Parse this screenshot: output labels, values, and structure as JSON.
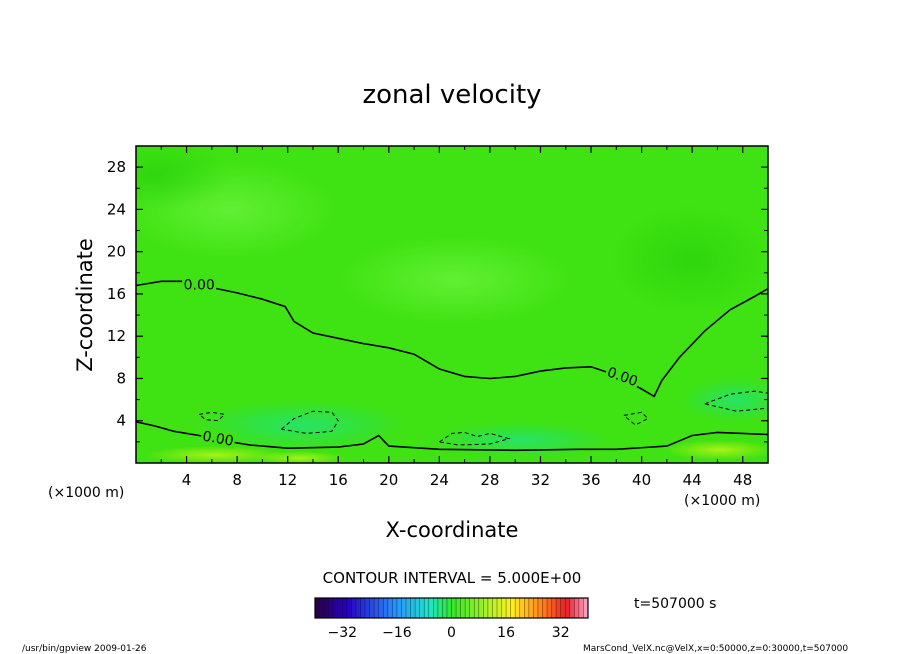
{
  "chart_data": {
    "type": "heatmap",
    "title": "zonal velocity",
    "xlabel": "X-coordinate",
    "ylabel": "Z-coordinate",
    "x_unit_left": "(×1000 m)",
    "x_unit_right": "(×1000 m)",
    "xlim": [
      0,
      50
    ],
    "ylim": [
      0,
      30
    ],
    "x_ticks": [
      4,
      8,
      12,
      16,
      20,
      24,
      28,
      32,
      36,
      40,
      44,
      48
    ],
    "y_ticks": [
      4,
      8,
      12,
      16,
      20,
      24,
      28
    ],
    "x_tick_labels": [
      "4",
      "8",
      "12",
      "16",
      "20",
      "24",
      "28",
      "32",
      "36",
      "40",
      "44",
      "48"
    ],
    "y_tick_labels": [
      "4",
      "8",
      "12",
      "16",
      "20",
      "24",
      "28"
    ],
    "contour_interval_text": "CONTOUR INTERVAL = 5.000E+00",
    "time_text": "t=507000 s",
    "contour_labels": [
      "0.00",
      "0.00",
      "0.00"
    ],
    "zero_contour_upper": [
      [
        0,
        16.8
      ],
      [
        2,
        17.2
      ],
      [
        4,
        17.2
      ],
      [
        6,
        16.6
      ],
      [
        8,
        16.1
      ],
      [
        10,
        15.5
      ],
      [
        11.8,
        14.8
      ],
      [
        12.5,
        13.4
      ],
      [
        14,
        12.3
      ],
      [
        16,
        11.8
      ],
      [
        18,
        11.3
      ],
      [
        20,
        10.9
      ],
      [
        22,
        10.3
      ],
      [
        24,
        8.9
      ],
      [
        26,
        8.2
      ],
      [
        28,
        8.0
      ],
      [
        30,
        8.2
      ],
      [
        32,
        8.7
      ],
      [
        34,
        9.0
      ],
      [
        36,
        9.1
      ],
      [
        38,
        8.3
      ],
      [
        40,
        7.0
      ],
      [
        41,
        6.3
      ],
      [
        41.6,
        7.8
      ],
      [
        43,
        10.0
      ],
      [
        45,
        12.5
      ],
      [
        47,
        14.5
      ],
      [
        49,
        15.8
      ],
      [
        50,
        16.5
      ]
    ],
    "zero_contour_lower": [
      [
        0,
        3.9
      ],
      [
        1.5,
        3.5
      ],
      [
        3,
        3.0
      ],
      [
        5,
        2.6
      ],
      [
        7,
        2.1
      ],
      [
        9,
        1.7
      ],
      [
        12,
        1.4
      ],
      [
        16,
        1.5
      ],
      [
        18,
        1.8
      ],
      [
        19.2,
        2.6
      ],
      [
        20,
        1.6
      ],
      [
        24,
        1.3
      ],
      [
        30,
        1.2
      ],
      [
        35,
        1.3
      ],
      [
        38,
        1.3
      ],
      [
        42,
        1.6
      ],
      [
        44,
        2.6
      ],
      [
        46,
        2.9
      ],
      [
        48,
        2.8
      ],
      [
        50,
        2.7
      ]
    ],
    "dashed_contours": [
      [
        [
          5,
          4.6
        ],
        [
          6,
          4.8
        ],
        [
          7,
          4.6
        ],
        [
          6.5,
          4.0
        ],
        [
          5.5,
          4.1
        ],
        [
          5,
          4.6
        ]
      ],
      [
        [
          11.5,
          3.2
        ],
        [
          12.5,
          4.2
        ],
        [
          14,
          4.9
        ],
        [
          15.5,
          4.8
        ],
        [
          16,
          4.0
        ],
        [
          15.5,
          3.0
        ],
        [
          13.5,
          2.8
        ],
        [
          11.5,
          3.2
        ]
      ],
      [
        [
          24,
          2.0
        ],
        [
          25,
          2.8
        ],
        [
          26,
          2.9
        ],
        [
          27,
          2.5
        ],
        [
          28,
          2.8
        ],
        [
          29.5,
          2.3
        ],
        [
          28,
          1.8
        ],
        [
          25.5,
          1.7
        ],
        [
          24,
          2.0
        ]
      ],
      [
        [
          38.6,
          4.5
        ],
        [
          40,
          4.8
        ],
        [
          40.5,
          4.2
        ],
        [
          39.5,
          3.6
        ],
        [
          38.6,
          4.5
        ]
      ],
      [
        [
          45,
          5.6
        ],
        [
          47,
          6.5
        ],
        [
          49,
          6.8
        ],
        [
          50,
          6.6
        ],
        [
          50,
          5.2
        ],
        [
          47.5,
          4.9
        ],
        [
          45,
          5.6
        ]
      ]
    ],
    "colorbar_ticks": [
      -32,
      -16,
      0,
      16,
      32
    ],
    "colorbar_tick_labels": [
      "−32",
      "−16",
      "0",
      "16",
      "32"
    ],
    "colorbar_range": [
      -40,
      40
    ]
  },
  "footer": {
    "left": "/usr/bin/gpview   2009-01-26",
    "right": "MarsCond_VelX.nc@VelX,x=0:50000,z=0:30000,t=507000"
  },
  "colors": {
    "field_green": "#3fe212",
    "contour": "#000000"
  }
}
